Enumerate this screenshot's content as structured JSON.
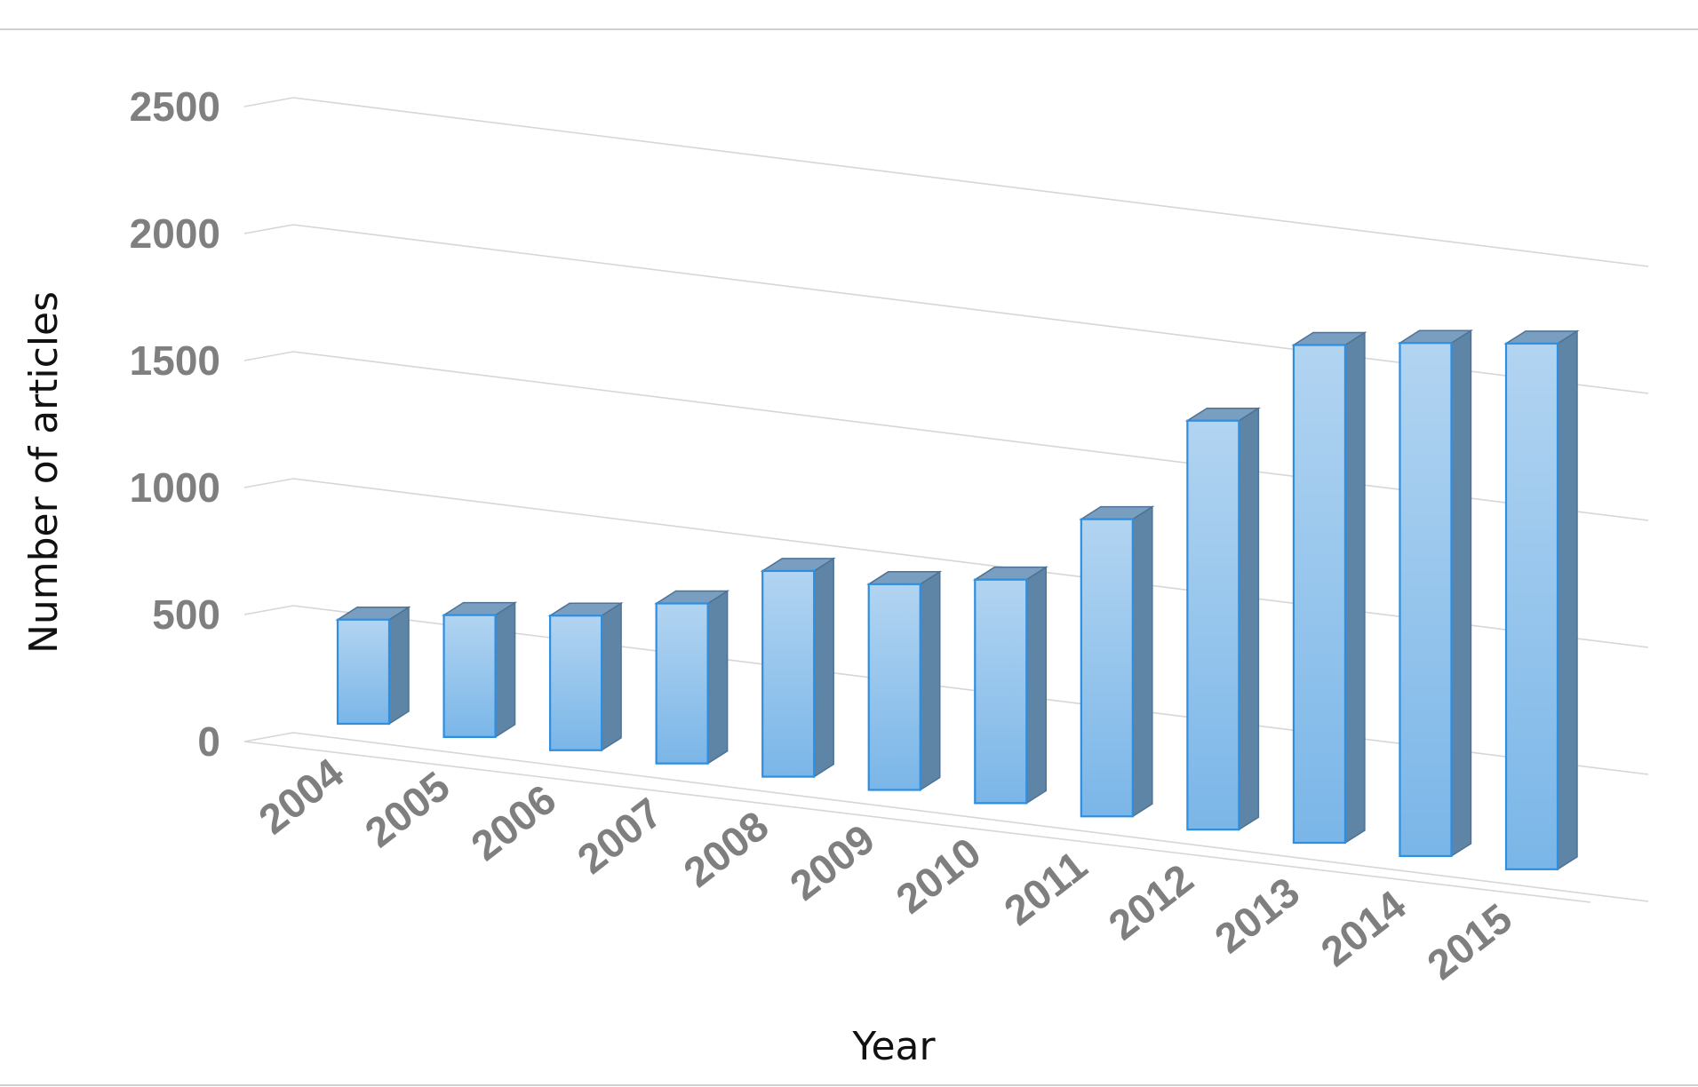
{
  "chart_data": {
    "type": "bar",
    "style": "3d-column",
    "title": "",
    "xlabel": "Year",
    "ylabel": "Number of articles",
    "categories": [
      "2004",
      "2005",
      "2006",
      "2007",
      "2008",
      "2009",
      "2010",
      "2011",
      "2012",
      "2013",
      "2014",
      "2015"
    ],
    "values": [
      410,
      480,
      530,
      630,
      810,
      810,
      880,
      1170,
      1610,
      1960,
      2020,
      2070
    ],
    "ylim": [
      0,
      2500
    ],
    "yticks": [
      "0",
      "500",
      "1000",
      "1500",
      "2000",
      "2500"
    ],
    "grid": true,
    "legend": "none",
    "colors": {
      "bar_front_light": "#b2d4f1",
      "bar_front_dark": "#7ab6e8",
      "bar_edge": "#2e8ee0",
      "bar_side": "#5e84a6",
      "bar_top": "#7a9ec0",
      "tick_text": "#7f7f7f",
      "grid": "#d6d6d6"
    }
  }
}
